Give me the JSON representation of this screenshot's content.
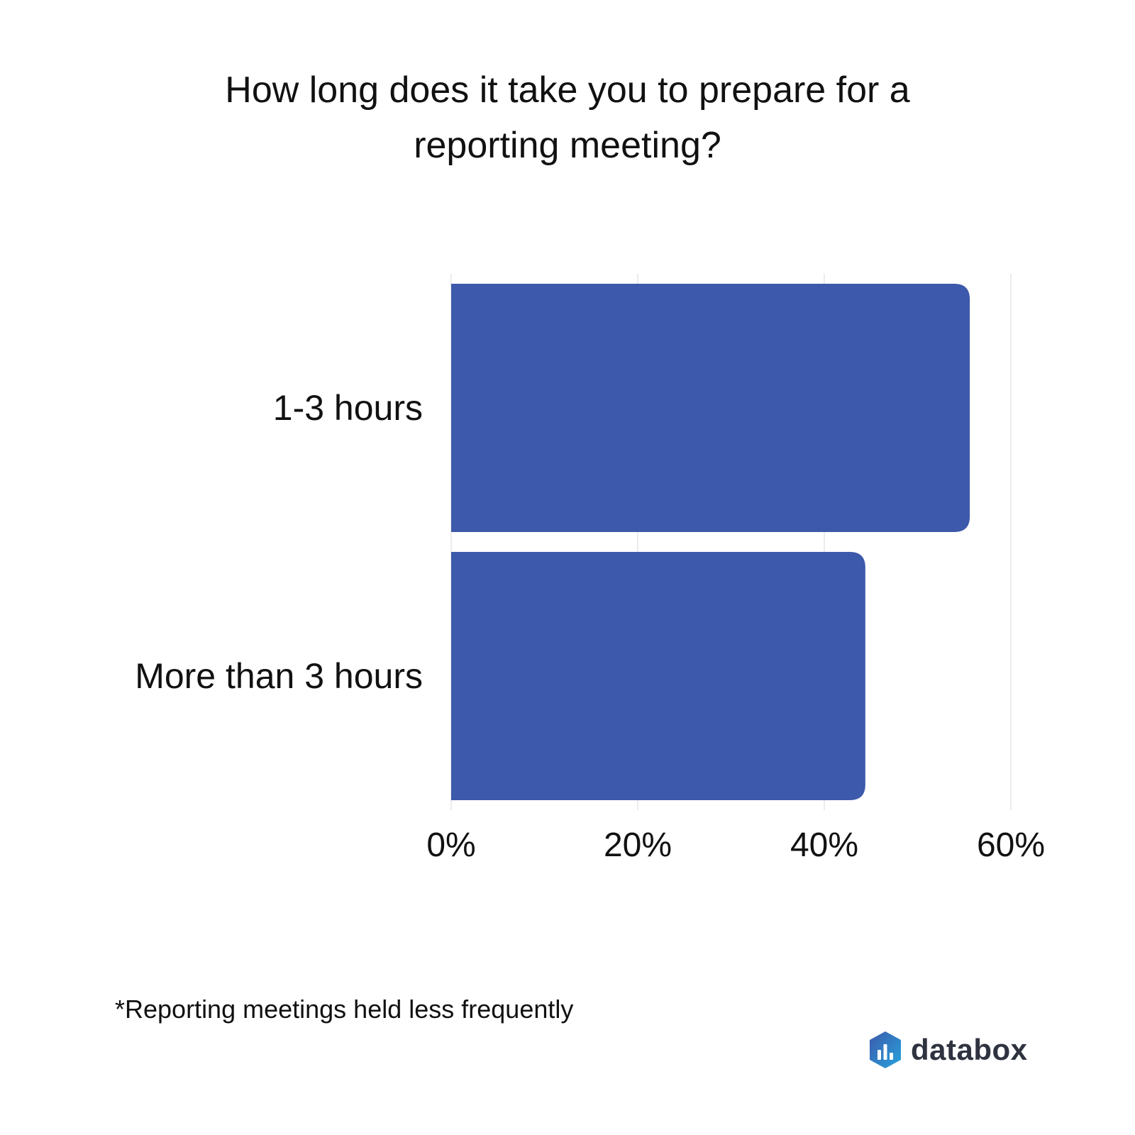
{
  "chart_data": {
    "type": "bar",
    "orientation": "horizontal",
    "title": "How long does it take you to prepare for a reporting meeting?",
    "categories": [
      "1-3 hours",
      "More than 3 hours"
    ],
    "values": [
      55.6,
      44.4
    ],
    "unit": "%",
    "xlim": [
      0,
      60
    ],
    "xticks": [
      "0%",
      "20%",
      "40%",
      "60%"
    ],
    "xtick_values": [
      0,
      20,
      40,
      60
    ],
    "grid": true,
    "bar_color": "#3d59ab",
    "grid_color": "#e6e6e6"
  },
  "footnote": "*Reporting meetings held less frequently",
  "brand": {
    "name": "databox",
    "text_color": "#2f3340",
    "mark_colors": [
      "#3d59ab",
      "#26a3dd"
    ]
  }
}
